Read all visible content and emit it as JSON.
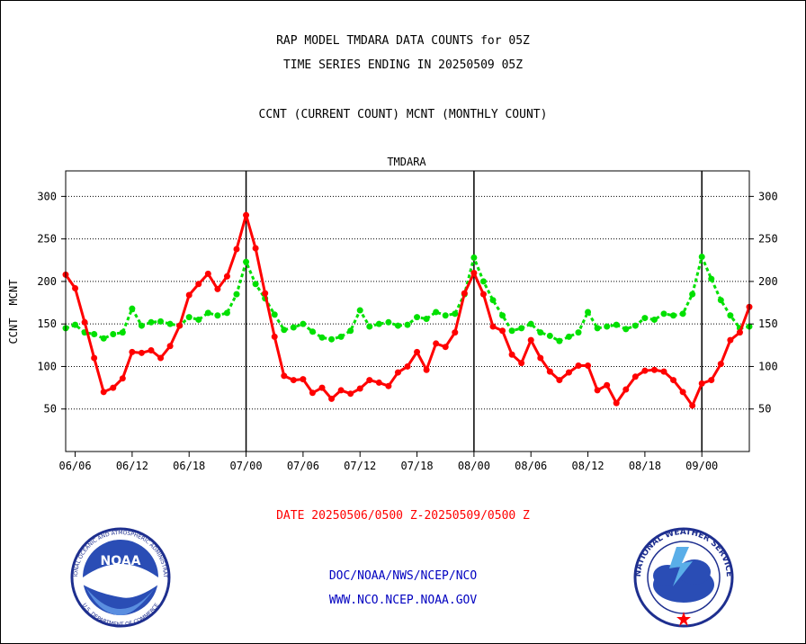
{
  "header": {
    "title_line1": "RAP MODEL TMDARA DATA COUNTS for 05Z",
    "title_line2": "TIME SERIES ENDING IN 20250509 05Z",
    "subtitle": "CCNT (CURRENT COUNT) MCNT (MONTHLY COUNT)"
  },
  "footer": {
    "date_range": "DATE 20250506/0500 Z-20250509/0500 Z",
    "link1": "DOC/NOAA/NWS/NCEP/NCO",
    "link2": "WWW.NCO.NCEP.NOAA.GOV",
    "noaa_logo_text": "NOAA",
    "noaa_ring_text": "NATIONAL OCEANIC AND ATMOSPHERIC ADMINISTRATION",
    "noaa_ring_bottom": "U.S. DEPARTMENT OF COMMERCE",
    "nws_ring_text": "NATIONAL WEATHER SERVICE"
  },
  "colors": {
    "ccnt": "#ff0000",
    "mcnt": "#00e000",
    "plot_label": "#0000c0",
    "footer_red": "#ff0000",
    "footer_blue": "#0000c0"
  },
  "chart_data": {
    "type": "line",
    "title": "TMDARA",
    "ylabel_ccnt": "CCNT",
    "ylabel_mcnt": "MCNT",
    "ylim": [
      0,
      330
    ],
    "y_ticks": [
      50,
      100,
      150,
      200,
      250,
      300
    ],
    "x_tick_labels": [
      "06/06",
      "06/12",
      "06/18",
      "07/00",
      "07/06",
      "07/12",
      "07/18",
      "08/00",
      "08/06",
      "08/12",
      "08/18",
      "09/00"
    ],
    "x_tick_hours": [
      6,
      12,
      18,
      24,
      30,
      36,
      42,
      48,
      54,
      60,
      66,
      72
    ],
    "x_range_hours": [
      5,
      77
    ],
    "day_boundaries_hours": [
      24,
      48,
      72
    ],
    "grid": true,
    "series": [
      {
        "name": "CCNT",
        "values": [
          208,
          192,
          152,
          110,
          70,
          75,
          86,
          117,
          116,
          119,
          110,
          124,
          148,
          184,
          197,
          209,
          191,
          206,
          238,
          278,
          239,
          186,
          135,
          89,
          84,
          85,
          69,
          75,
          62,
          72,
          68,
          74,
          84,
          81,
          77,
          93,
          100,
          117,
          96,
          127,
          123,
          140,
          186,
          210,
          185,
          147,
          142,
          114,
          104,
          131,
          110,
          94,
          84,
          93,
          101,
          101,
          72,
          78,
          57,
          73,
          88,
          95,
          96,
          94,
          84,
          70,
          54,
          80,
          84,
          103,
          131,
          140,
          170
        ]
      },
      {
        "name": "MCNT",
        "values": [
          145,
          149,
          140,
          138,
          133,
          138,
          140,
          168,
          148,
          152,
          153,
          150,
          148,
          158,
          155,
          163,
          160,
          163,
          185,
          223,
          197,
          180,
          161,
          143,
          146,
          150,
          141,
          134,
          132,
          135,
          142,
          166,
          147,
          150,
          152,
          148,
          149,
          158,
          156,
          164,
          160,
          162,
          185,
          228,
          200,
          178,
          160,
          142,
          145,
          150,
          140,
          136,
          130,
          135,
          140,
          164,
          145,
          147,
          149,
          144,
          148,
          157,
          155,
          162,
          160,
          162,
          185,
          229,
          203,
          178,
          160,
          145,
          147
        ]
      }
    ]
  }
}
